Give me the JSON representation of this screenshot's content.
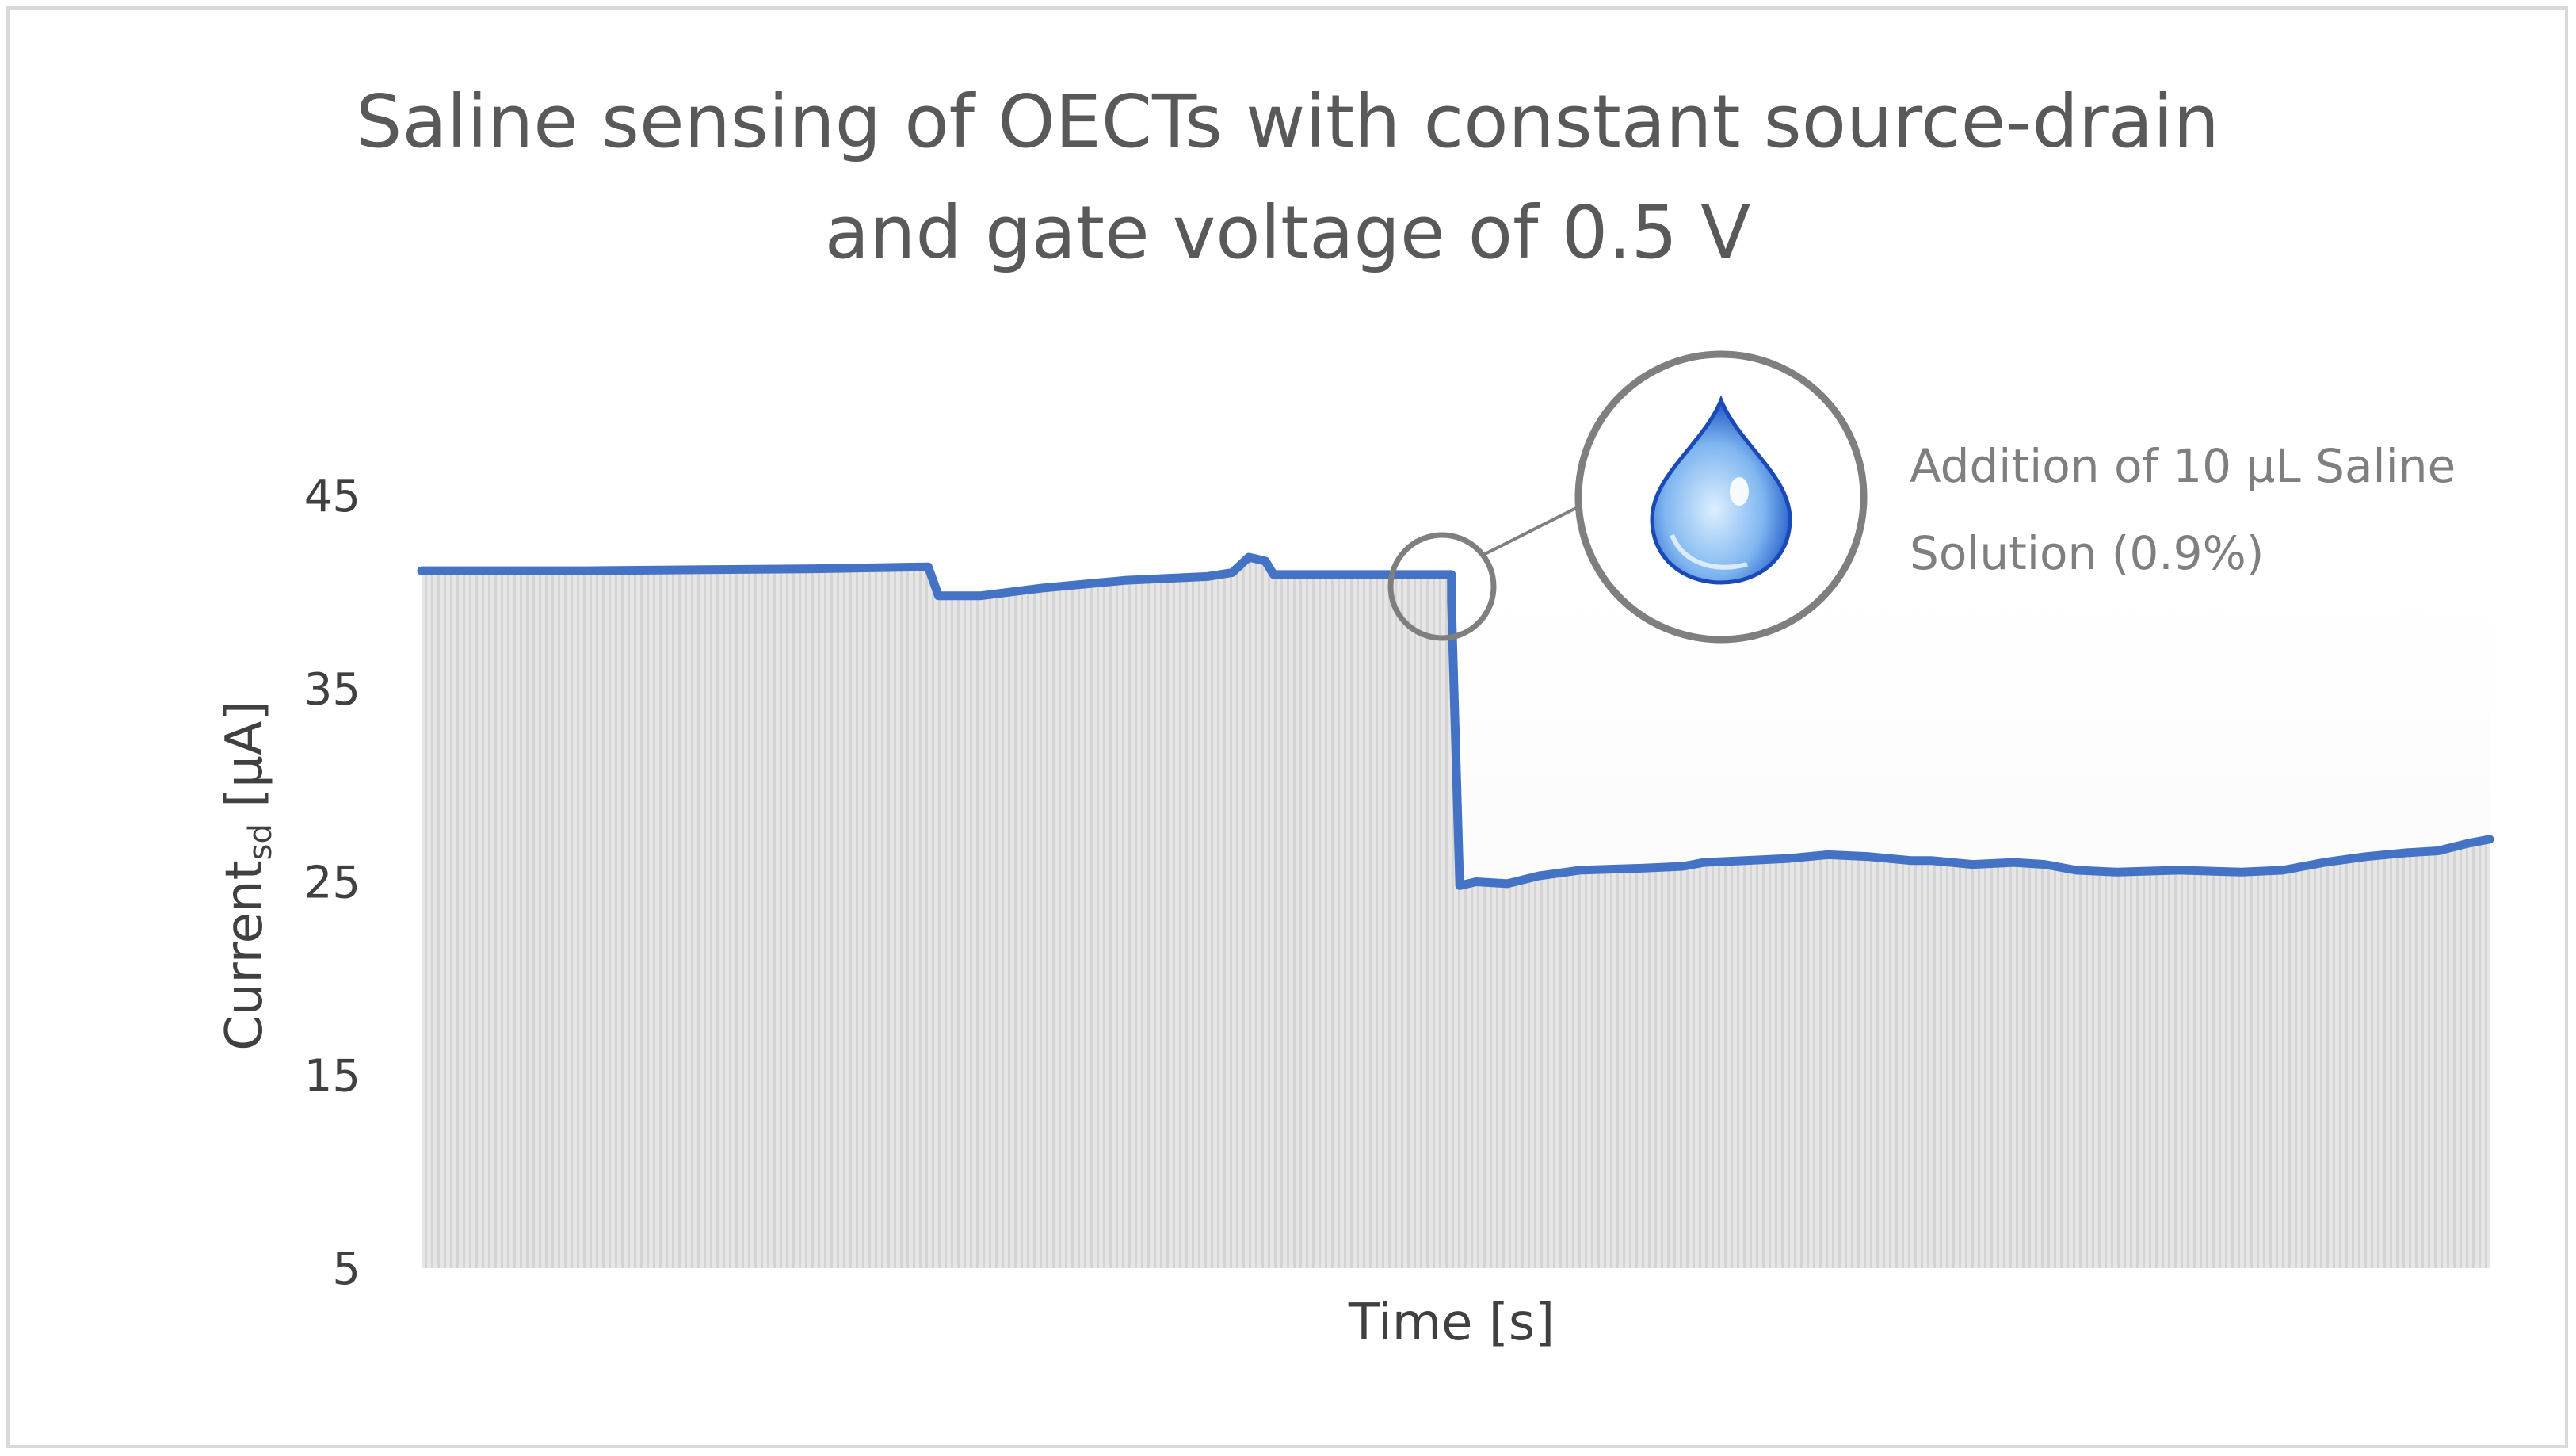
{
  "chart_data": {
    "type": "area",
    "title_lines": [
      "Saline sensing of OECTs with constant source-drain",
      "and gate voltage of 0.5 V"
    ],
    "xlabel": "Time [s]",
    "ylabel_main": "Current",
    "ylabel_sub": "sd",
    "ylabel_unit": " [µA]",
    "yticks": [
      "45",
      "35",
      "25",
      "15",
      "5"
    ],
    "ylim": [
      5,
      49
    ],
    "xlim": [
      0,
      1
    ],
    "grid": false,
    "series": [
      {
        "color": "#4472c4",
        "fill": "#e3e3e3",
        "points": [
          [
            0.0,
            41.1
          ],
          [
            0.08,
            41.1
          ],
          [
            0.19,
            41.2
          ],
          [
            0.245,
            41.3
          ],
          [
            0.25,
            39.8
          ],
          [
            0.27,
            39.8
          ],
          [
            0.3,
            40.2
          ],
          [
            0.34,
            40.6
          ],
          [
            0.38,
            40.8
          ],
          [
            0.392,
            41.0
          ],
          [
            0.4,
            41.8
          ],
          [
            0.408,
            41.6
          ],
          [
            0.412,
            40.9
          ],
          [
            0.42,
            40.9
          ],
          [
            0.45,
            40.9
          ],
          [
            0.498,
            40.9
          ],
          [
            0.498,
            39.5
          ],
          [
            0.502,
            24.8
          ],
          [
            0.51,
            25.0
          ],
          [
            0.525,
            24.9
          ],
          [
            0.54,
            25.3
          ],
          [
            0.56,
            25.6
          ],
          [
            0.59,
            25.7
          ],
          [
            0.61,
            25.8
          ],
          [
            0.62,
            26.0
          ],
          [
            0.64,
            26.1
          ],
          [
            0.66,
            26.2
          ],
          [
            0.68,
            26.4
          ],
          [
            0.7,
            26.3
          ],
          [
            0.72,
            26.1
          ],
          [
            0.73,
            26.1
          ],
          [
            0.75,
            25.9
          ],
          [
            0.77,
            26.0
          ],
          [
            0.785,
            25.9
          ],
          [
            0.8,
            25.6
          ],
          [
            0.82,
            25.5
          ],
          [
            0.85,
            25.6
          ],
          [
            0.88,
            25.5
          ],
          [
            0.9,
            25.6
          ],
          [
            0.92,
            26.0
          ],
          [
            0.94,
            26.3
          ],
          [
            0.96,
            26.5
          ],
          [
            0.975,
            26.6
          ],
          [
            0.99,
            27.0
          ],
          [
            1.0,
            27.2
          ]
        ]
      }
    ],
    "annotation": {
      "text_lines": [
        "Addition  of  10  µL  Saline",
        "Solution (0.9%)"
      ],
      "target": [
        0.498,
        40.9
      ],
      "icon": "water-drop-icon",
      "circle_color": "#7f7f7f"
    }
  }
}
